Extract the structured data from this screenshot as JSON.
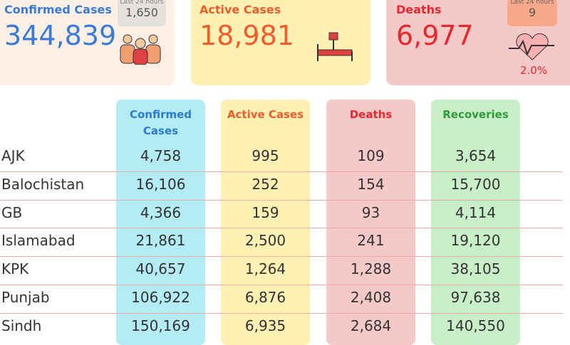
{
  "cards": [
    {
      "label": "Confirmed Cases",
      "value": "344,839",
      "last24_label": "Last 24 hours",
      "last24_value": "1,650"
    },
    {
      "label": "Active Cases",
      "value": "18,981"
    },
    {
      "label": "Deaths",
      "value": "6,977",
      "last24_label": "Last 24 hours",
      "last24_value": "9",
      "rate": "2.0%"
    }
  ],
  "table": {
    "headers": [
      "Confirmed Cases",
      "Active Cases",
      "Deaths",
      "Recoveries"
    ],
    "rows": [
      [
        "AJK",
        "4,758",
        "995",
        "109",
        "3,654"
      ],
      [
        "Balochistan",
        "16,106",
        "252",
        "154",
        "15,700"
      ],
      [
        "GB",
        "4,366",
        "159",
        "93",
        "4,114"
      ],
      [
        "Islamabad",
        "21,861",
        "2,500",
        "241",
        "19,120"
      ],
      [
        "KPK",
        "40,657",
        "1,264",
        "1,288",
        "38,105"
      ],
      [
        "Punjab",
        "106,922",
        "6,876",
        "2,408",
        "97,638"
      ],
      [
        "Sindh",
        "150,169",
        "6,935",
        "2,684",
        "140,550"
      ]
    ]
  }
}
